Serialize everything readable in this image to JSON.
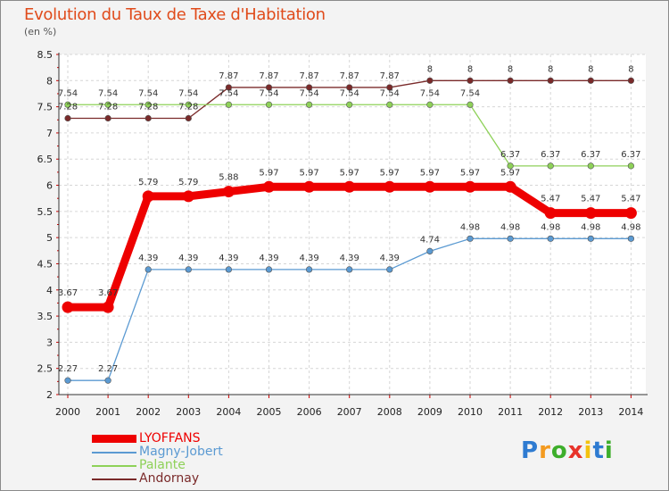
{
  "chart_data": {
    "type": "line",
    "title": "Evolution du Taux de Taxe d'Habitation",
    "ylabel": "(en %)",
    "xlabel": "",
    "ylim": [
      2,
      8.5
    ],
    "yticks": [
      "2",
      "2.5",
      "3",
      "3.5",
      "4",
      "4.5",
      "5",
      "5.5",
      "6",
      "6.5",
      "7",
      "7.5",
      "8",
      "8.5"
    ],
    "x": [
      "2000",
      "2001",
      "2002",
      "2003",
      "2004",
      "2005",
      "2006",
      "2007",
      "2008",
      "2009",
      "2010",
      "2011",
      "2012",
      "2013",
      "2014"
    ],
    "grid": true,
    "series": [
      {
        "name": "Andornay",
        "color": "#7a2a2a",
        "values": [
          7.28,
          7.28,
          7.28,
          7.28,
          7.87,
          7.87,
          7.87,
          7.87,
          7.87,
          8,
          8,
          8,
          8,
          8,
          8
        ],
        "labels": [
          "7.28",
          "7.28",
          "7.28",
          "7.28",
          "7.87",
          "7.87",
          "7.87",
          "7.87",
          "7.87",
          "8",
          "8",
          "8",
          "8",
          "8",
          "8"
        ]
      },
      {
        "name": "Palante",
        "color": "#8ed158",
        "values": [
          7.54,
          7.54,
          7.54,
          7.54,
          7.54,
          7.54,
          7.54,
          7.54,
          7.54,
          7.54,
          7.54,
          6.37,
          6.37,
          6.37,
          6.37
        ],
        "labels": [
          "7.54",
          "7.54",
          "7.54",
          "7.54",
          "7.54",
          "7.54",
          "7.54",
          "7.54",
          "7.54",
          "7.54",
          "7.54",
          "6.37",
          "6.37",
          "6.37",
          "6.37"
        ]
      },
      {
        "name": "Magny-Jobert",
        "color": "#5b9ad2",
        "values": [
          2.27,
          2.27,
          4.39,
          4.39,
          4.39,
          4.39,
          4.39,
          4.39,
          4.39,
          4.74,
          4.98,
          4.98,
          4.98,
          4.98,
          4.98
        ],
        "labels": [
          "2.27",
          "2.27",
          "4.39",
          "4.39",
          "4.39",
          "4.39",
          "4.39",
          "4.39",
          "4.39",
          "4.74",
          "4.98",
          "4.98",
          "4.98",
          "4.98",
          "4.98"
        ]
      },
      {
        "name": "LYOFFANS",
        "color": "#ee0000",
        "values": [
          3.67,
          3.67,
          5.79,
          5.79,
          5.88,
          5.97,
          5.97,
          5.97,
          5.97,
          5.97,
          5.97,
          5.97,
          5.47,
          5.47,
          5.47
        ],
        "labels": [
          "3.67",
          "3.67",
          "5.79",
          "5.79",
          "5.88",
          "5.97",
          "5.97",
          "5.97",
          "5.97",
          "5.97",
          "5.97",
          "5.97",
          "5.47",
          "5.47",
          "5.47"
        ]
      }
    ],
    "legend": [
      "LYOFFANS",
      "Magny-Jobert",
      "Palante",
      "Andornay"
    ]
  },
  "brand": {
    "letters": [
      "P",
      "r",
      "o",
      "x",
      "i",
      "t",
      "i"
    ],
    "colors": [
      "#2e7bd1",
      "#f39a1f",
      "#3dae2b",
      "#e8332a",
      "#f4c20d",
      "#2e7bd1",
      "#3dae2b"
    ]
  }
}
